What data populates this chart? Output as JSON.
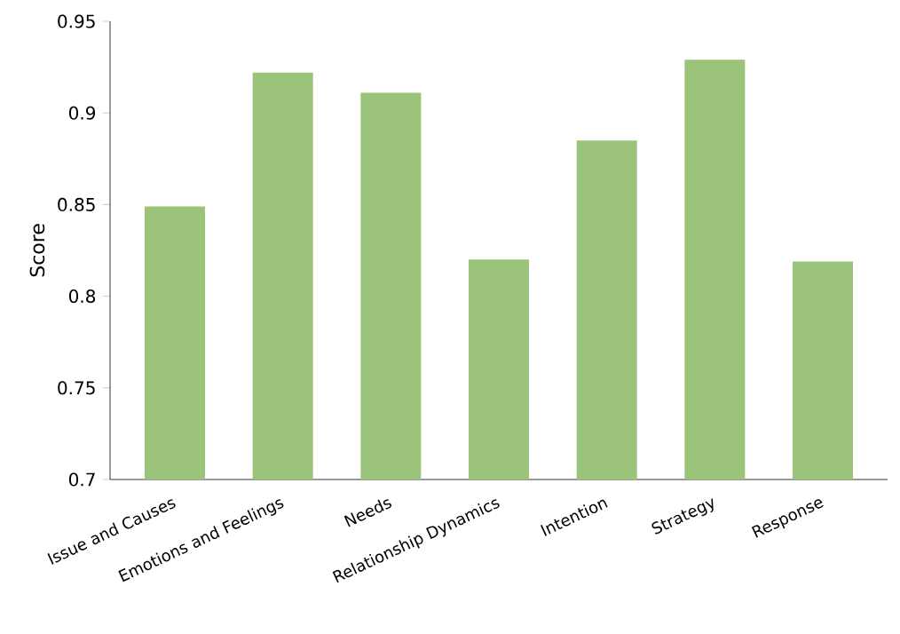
{
  "chart_data": {
    "type": "bar",
    "ylabel": "Score",
    "categories": [
      "Issue and Causes",
      "Emotions and Feelings",
      "Needs",
      "Relationship Dynamics",
      "Intention",
      "Strategy",
      "Response"
    ],
    "values": [
      0.849,
      0.922,
      0.911,
      0.82,
      0.885,
      0.929,
      0.819
    ],
    "color": "#9bc47a",
    "ylim": [
      0.7,
      0.95
    ],
    "yticks": [
      0.7,
      0.75,
      0.8,
      0.85,
      0.9,
      0.95
    ],
    "grid": false
  }
}
